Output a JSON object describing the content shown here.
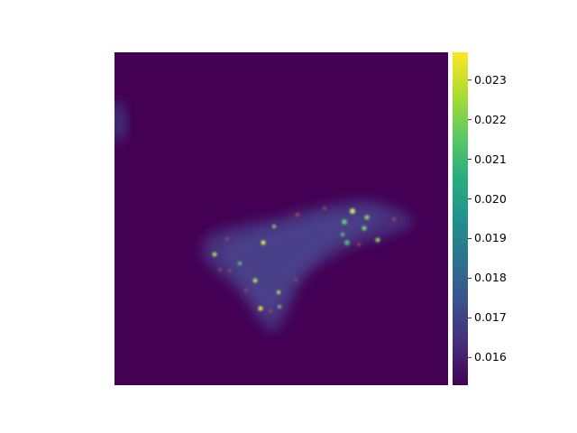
{
  "image": {
    "description_colormap": "viridis",
    "background_color": "#440154"
  },
  "colorbar": {
    "colormap": "viridis",
    "min": 0.0153,
    "max": 0.0237,
    "ticks": [
      {
        "value": 0.023,
        "label": "0.023"
      },
      {
        "value": 0.022,
        "label": "0.022"
      },
      {
        "value": 0.021,
        "label": "0.021"
      },
      {
        "value": 0.02,
        "label": "0.020"
      },
      {
        "value": 0.019,
        "label": "0.019"
      },
      {
        "value": 0.018,
        "label": "0.018"
      },
      {
        "value": 0.017,
        "label": "0.017"
      },
      {
        "value": 0.016,
        "label": "0.016"
      }
    ]
  }
}
